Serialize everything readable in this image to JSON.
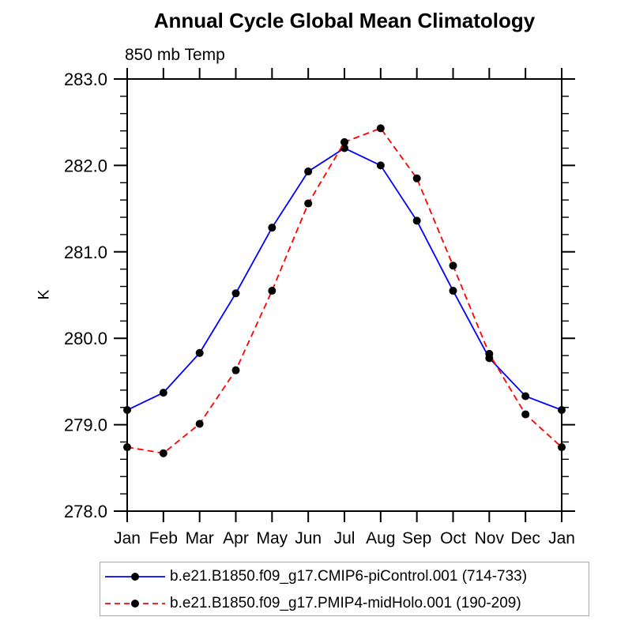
{
  "chart_data": {
    "type": "line",
    "title": "Annual Cycle Global Mean Climatology",
    "subtitle": "850 mb Temp",
    "ylabel": "K",
    "xlabel": "",
    "x_tick_labels": [
      "Jan",
      "Feb",
      "Mar",
      "Apr",
      "May",
      "Jun",
      "Jul",
      "Aug",
      "Sep",
      "Oct",
      "Nov",
      "Dec",
      "Jan"
    ],
    "ylim": [
      278.0,
      283.0
    ],
    "y_tick_labels": [
      "278.0",
      "279.0",
      "280.0",
      "281.0",
      "282.0",
      "283.0"
    ],
    "y_major_ticks": [
      278.0,
      279.0,
      280.0,
      281.0,
      282.0,
      283.0
    ],
    "y_minor_step": 0.2,
    "grid": false,
    "legend_position": "bottom",
    "axis_color": "#000000",
    "series": [
      {
        "name": "b.e21.B1850.f09_g17.CMIP6-piControl.001 (714-733)",
        "color": "#0000ff",
        "line_style": "solid",
        "marker": "filled-circle",
        "marker_color": "#000000",
        "values": [
          279.17,
          279.37,
          279.83,
          280.52,
          281.28,
          281.93,
          282.2,
          282.0,
          281.36,
          280.55,
          279.77,
          279.33,
          279.17
        ]
      },
      {
        "name": "b.e21.B1850.f09_g17.PMIP4-midHolo.001 (190-209)",
        "color": "#ff0000",
        "line_style": "dashed",
        "marker": "filled-circle",
        "marker_color": "#000000",
        "values": [
          278.74,
          278.67,
          279.01,
          279.63,
          280.55,
          281.56,
          282.27,
          282.43,
          281.85,
          280.84,
          279.82,
          279.12,
          278.74
        ]
      }
    ]
  }
}
